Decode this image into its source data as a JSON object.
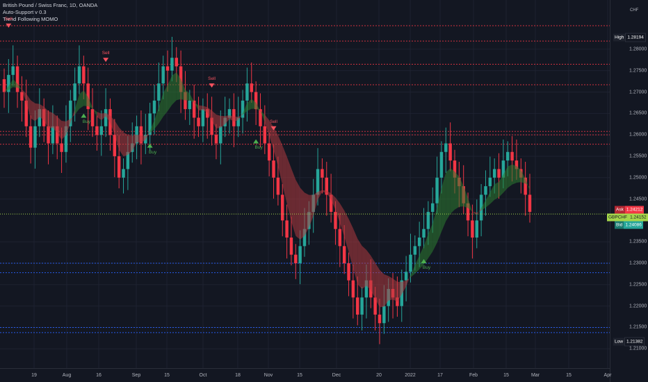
{
  "legend": {
    "symbol": "British Pound / Swiss Franc, 1D, OANDA",
    "indicator1": "Auto-Support v 0.3",
    "indicator2": "Trend Following MOMO"
  },
  "price_axis": {
    "currency": "CHF",
    "ticks": [
      "1.28000",
      "1.27500",
      "1.27000",
      "1.26500",
      "1.26000",
      "1.25500",
      "1.25000",
      "1.24500",
      "1.23500",
      "1.23000",
      "1.22500",
      "1.22000",
      "1.21500",
      "1.21000"
    ],
    "high_label": "High",
    "high_value": "1.28194",
    "ask_label": "Ask",
    "ask_value": "1.24212",
    "mid_label": "GBPCHF",
    "mid_value": "1.24152",
    "bid_label": "Bid",
    "bid_value": "1.24086",
    "low_label": "Low",
    "low_value": "1.21382"
  },
  "time_axis": {
    "ticks": [
      "19",
      "Aug",
      "16",
      "Sep",
      "15",
      "Oct",
      "18",
      "Nov",
      "15",
      "Dec",
      "20",
      "2022",
      "17",
      "Feb",
      "15",
      "Mar",
      "15",
      "Apr"
    ]
  },
  "signals": {
    "sell": "Sell",
    "buy": "Buy"
  },
  "colors": {
    "background": "#131722",
    "up": "#26a69a",
    "down": "#f23645",
    "resistance": "#f23645",
    "support": "#2962ff",
    "price_line": "#a5d64b"
  },
  "chart_data": {
    "type": "candlestick",
    "ylim": [
      1.2055,
      1.2915
    ],
    "levels": {
      "resistance": [
        1.2855,
        1.2819,
        1.2765,
        1.2717,
        1.2608,
        1.26,
        1.2578
      ],
      "support": [
        1.23,
        1.2278,
        1.215,
        1.2138
      ],
      "last_price": 1.2415
    },
    "closes": [
      1.27,
      1.274,
      1.276,
      1.27,
      1.268,
      1.262,
      1.257,
      1.262,
      1.266,
      1.262,
      1.258,
      1.262,
      1.258,
      1.256,
      1.262,
      1.268,
      1.272,
      1.276,
      1.272,
      1.266,
      1.262,
      1.26,
      1.262,
      1.266,
      1.26,
      1.255,
      1.25,
      1.252,
      1.256,
      1.258,
      1.262,
      1.258,
      1.26,
      1.265,
      1.268,
      1.272,
      1.276,
      1.275,
      1.278,
      1.276,
      1.27,
      1.266,
      1.268,
      1.264,
      1.262,
      1.266,
      1.264,
      1.26,
      1.258,
      1.262,
      1.264,
      1.266,
      1.262,
      1.264,
      1.268,
      1.272,
      1.27,
      1.266,
      1.262,
      1.258,
      1.254,
      1.25,
      1.246,
      1.24,
      1.236,
      1.232,
      1.23,
      1.234,
      1.238,
      1.242,
      1.246,
      1.252,
      1.25,
      1.246,
      1.242,
      1.238,
      1.234,
      1.23,
      1.226,
      1.222,
      1.218,
      1.222,
      1.226,
      1.222,
      1.218,
      1.216,
      1.22,
      1.224,
      1.222,
      1.22,
      1.226,
      1.228,
      1.232,
      1.234,
      1.236,
      1.238,
      1.242,
      1.244,
      1.25,
      1.256,
      1.258,
      1.254,
      1.25,
      1.248,
      1.244,
      1.24,
      1.236,
      1.24,
      1.246,
      1.248,
      1.25,
      1.252,
      1.25,
      1.254,
      1.256,
      1.254,
      1.252,
      1.25,
      1.246,
      1.242
    ],
    "signals": [
      {
        "type": "sell",
        "index": 1
      },
      {
        "type": "buy",
        "index": 18
      },
      {
        "type": "sell",
        "index": 23
      },
      {
        "type": "buy",
        "index": 33
      },
      {
        "type": "sell",
        "index": 47
      },
      {
        "type": "buy",
        "index": 57
      },
      {
        "type": "sell",
        "index": 61
      },
      {
        "type": "buy",
        "index": 95
      }
    ]
  }
}
